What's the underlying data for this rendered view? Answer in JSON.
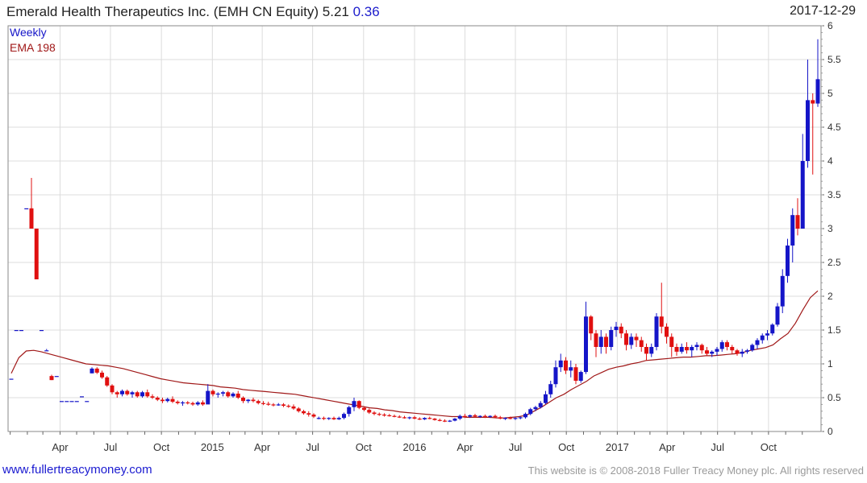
{
  "header": {
    "title": "Emerald Health Therapeutics Inc. (EMH CN Equity) 5.21",
    "change": "0.36",
    "date": "2017-12-29"
  },
  "footer": {
    "link": "www.fullertreacymoney.com",
    "copyright": "This website is © 2008-2018 Fuller Treacy Money plc. All rights reserved"
  },
  "colors": {
    "up": "#1515c8",
    "down": "#e01010",
    "ema": "#a01818",
    "grid": "#dcdcdc",
    "frame": "#8a8a8a"
  },
  "chart_data": {
    "type": "candlestick",
    "frequency": "weekly",
    "legend": [
      {
        "label": "Weekly",
        "color": "#1515c8"
      },
      {
        "label": "EMA 198",
        "color": "#a01818"
      }
    ],
    "legend_position": "top-left",
    "y_axis_side": "right",
    "ylim": [
      0,
      6
    ],
    "y_ticks": [
      "0",
      "0.5",
      "1",
      "1.5",
      "2",
      "2.5",
      "3",
      "3.5",
      "4",
      "4.5",
      "5",
      "5.5",
      "6"
    ],
    "x_ticks": [
      "Apr",
      "Jul",
      "Oct",
      "2015",
      "Apr",
      "Jul",
      "Oct",
      "2016",
      "Apr",
      "Jul",
      "Oct",
      "2017",
      "Apr",
      "Jul",
      "Oct"
    ],
    "grid": true,
    "weeks": [
      "2014-01-03",
      "2017-12-29"
    ],
    "candles": [
      [
        0.78,
        0.78,
        0.78,
        0.78
      ],
      [
        1.5,
        1.5,
        1.5,
        1.5
      ],
      [
        1.5,
        1.5,
        1.5,
        1.5
      ],
      [
        3.3,
        3.3,
        3.3,
        3.3
      ],
      [
        3.3,
        3.75,
        3.0,
        3.0
      ],
      [
        3.0,
        3.0,
        2.25,
        2.25
      ],
      [
        1.5,
        1.5,
        1.5,
        1.5
      ],
      [
        1.2,
        1.22,
        1.2,
        1.2
      ],
      [
        0.82,
        0.84,
        0.76,
        0.76
      ],
      [
        0.82,
        0.82,
        0.82,
        0.82
      ],
      [
        0.45,
        0.45,
        0.45,
        0.45
      ],
      [
        0.45,
        0.45,
        0.45,
        0.45
      ],
      [
        0.45,
        0.45,
        0.45,
        0.45
      ],
      [
        0.45,
        0.45,
        0.45,
        0.45
      ],
      [
        0.52,
        0.52,
        0.52,
        0.52
      ],
      [
        0.45,
        0.45,
        0.45,
        0.45
      ],
      [
        0.86,
        0.95,
        0.86,
        0.93
      ],
      [
        0.93,
        0.95,
        0.85,
        0.87
      ],
      [
        0.87,
        0.9,
        0.78,
        0.8
      ],
      [
        0.8,
        0.82,
        0.66,
        0.68
      ],
      [
        0.68,
        0.7,
        0.55,
        0.58
      ],
      [
        0.58,
        0.6,
        0.5,
        0.55
      ],
      [
        0.55,
        0.62,
        0.52,
        0.6
      ],
      [
        0.6,
        0.62,
        0.53,
        0.55
      ],
      [
        0.55,
        0.6,
        0.5,
        0.58
      ],
      [
        0.58,
        0.6,
        0.5,
        0.52
      ],
      [
        0.52,
        0.6,
        0.5,
        0.58
      ],
      [
        0.58,
        0.62,
        0.5,
        0.52
      ],
      [
        0.52,
        0.55,
        0.48,
        0.5
      ],
      [
        0.5,
        0.52,
        0.45,
        0.47
      ],
      [
        0.47,
        0.5,
        0.42,
        0.45
      ],
      [
        0.45,
        0.5,
        0.43,
        0.48
      ],
      [
        0.48,
        0.52,
        0.42,
        0.44
      ],
      [
        0.44,
        0.46,
        0.4,
        0.42
      ],
      [
        0.42,
        0.45,
        0.38,
        0.43
      ],
      [
        0.43,
        0.45,
        0.4,
        0.42
      ],
      [
        0.42,
        0.44,
        0.38,
        0.4
      ],
      [
        0.4,
        0.45,
        0.38,
        0.43
      ],
      [
        0.43,
        0.46,
        0.38,
        0.4
      ],
      [
        0.4,
        0.7,
        0.42,
        0.6
      ],
      [
        0.6,
        0.62,
        0.52,
        0.55
      ],
      [
        0.55,
        0.58,
        0.5,
        0.56
      ],
      [
        0.56,
        0.6,
        0.52,
        0.58
      ],
      [
        0.58,
        0.6,
        0.5,
        0.52
      ],
      [
        0.52,
        0.58,
        0.5,
        0.56
      ],
      [
        0.56,
        0.6,
        0.48,
        0.5
      ],
      [
        0.5,
        0.52,
        0.42,
        0.45
      ],
      [
        0.45,
        0.48,
        0.42,
        0.47
      ],
      [
        0.47,
        0.5,
        0.43,
        0.45
      ],
      [
        0.45,
        0.47,
        0.4,
        0.42
      ],
      [
        0.42,
        0.45,
        0.39,
        0.41
      ],
      [
        0.41,
        0.44,
        0.38,
        0.4
      ],
      [
        0.4,
        0.42,
        0.37,
        0.39
      ],
      [
        0.39,
        0.42,
        0.38,
        0.4
      ],
      [
        0.4,
        0.42,
        0.36,
        0.38
      ],
      [
        0.38,
        0.4,
        0.35,
        0.37
      ],
      [
        0.37,
        0.4,
        0.32,
        0.34
      ],
      [
        0.34,
        0.36,
        0.28,
        0.3
      ],
      [
        0.3,
        0.32,
        0.25,
        0.27
      ],
      [
        0.27,
        0.3,
        0.22,
        0.25
      ],
      [
        0.25,
        0.27,
        0.2,
        0.22
      ],
      [
        0.2,
        0.22,
        0.18,
        0.2
      ],
      [
        0.2,
        0.22,
        0.17,
        0.19
      ],
      [
        0.19,
        0.21,
        0.17,
        0.2
      ],
      [
        0.2,
        0.22,
        0.17,
        0.18
      ],
      [
        0.18,
        0.22,
        0.17,
        0.2
      ],
      [
        0.2,
        0.28,
        0.18,
        0.26
      ],
      [
        0.26,
        0.38,
        0.22,
        0.36
      ],
      [
        0.36,
        0.5,
        0.3,
        0.45
      ],
      [
        0.45,
        0.46,
        0.33,
        0.35
      ],
      [
        0.35,
        0.37,
        0.3,
        0.32
      ],
      [
        0.32,
        0.34,
        0.26,
        0.28
      ],
      [
        0.28,
        0.3,
        0.24,
        0.26
      ],
      [
        0.26,
        0.28,
        0.23,
        0.25
      ],
      [
        0.25,
        0.27,
        0.22,
        0.24
      ],
      [
        0.24,
        0.26,
        0.22,
        0.23
      ],
      [
        0.23,
        0.25,
        0.21,
        0.22
      ],
      [
        0.22,
        0.24,
        0.2,
        0.21
      ],
      [
        0.21,
        0.23,
        0.19,
        0.2
      ],
      [
        0.2,
        0.22,
        0.18,
        0.21
      ],
      [
        0.21,
        0.23,
        0.18,
        0.19
      ],
      [
        0.19,
        0.21,
        0.17,
        0.18
      ],
      [
        0.18,
        0.21,
        0.17,
        0.2
      ],
      [
        0.2,
        0.22,
        0.18,
        0.19
      ],
      [
        0.19,
        0.2,
        0.16,
        0.17
      ],
      [
        0.17,
        0.19,
        0.15,
        0.16
      ],
      [
        0.16,
        0.18,
        0.14,
        0.15
      ],
      [
        0.15,
        0.17,
        0.14,
        0.16
      ],
      [
        0.16,
        0.2,
        0.15,
        0.19
      ],
      [
        0.19,
        0.25,
        0.17,
        0.23
      ],
      [
        0.23,
        0.26,
        0.2,
        0.22
      ],
      [
        0.22,
        0.25,
        0.2,
        0.24
      ],
      [
        0.24,
        0.26,
        0.21,
        0.22
      ],
      [
        0.22,
        0.24,
        0.2,
        0.23
      ],
      [
        0.23,
        0.25,
        0.2,
        0.22
      ],
      [
        0.22,
        0.24,
        0.2,
        0.23
      ],
      [
        0.23,
        0.25,
        0.2,
        0.21
      ],
      [
        0.21,
        0.23,
        0.18,
        0.19
      ],
      [
        0.19,
        0.21,
        0.17,
        0.2
      ],
      [
        0.2,
        0.22,
        0.18,
        0.19
      ],
      [
        0.19,
        0.21,
        0.17,
        0.2
      ],
      [
        0.2,
        0.22,
        0.18,
        0.21
      ],
      [
        0.21,
        0.28,
        0.19,
        0.26
      ],
      [
        0.26,
        0.35,
        0.24,
        0.33
      ],
      [
        0.33,
        0.38,
        0.3,
        0.36
      ],
      [
        0.36,
        0.45,
        0.34,
        0.42
      ],
      [
        0.42,
        0.6,
        0.4,
        0.55
      ],
      [
        0.55,
        0.75,
        0.5,
        0.7
      ],
      [
        0.7,
        1.05,
        0.65,
        0.95
      ],
      [
        0.95,
        1.15,
        0.88,
        1.05
      ],
      [
        1.05,
        1.1,
        0.85,
        0.9
      ],
      [
        0.9,
        1.05,
        0.8,
        0.95
      ],
      [
        0.95,
        1.0,
        0.7,
        0.75
      ],
      [
        0.75,
        0.9,
        0.72,
        0.88
      ],
      [
        0.88,
        1.92,
        0.85,
        1.7
      ],
      [
        1.7,
        1.72,
        1.35,
        1.45
      ],
      [
        1.45,
        1.5,
        1.1,
        1.25
      ],
      [
        1.25,
        1.5,
        1.15,
        1.4
      ],
      [
        1.4,
        1.45,
        1.15,
        1.25
      ],
      [
        1.25,
        1.55,
        1.2,
        1.5
      ],
      [
        1.5,
        1.62,
        1.4,
        1.55
      ],
      [
        1.55,
        1.6,
        1.38,
        1.45
      ],
      [
        1.45,
        1.5,
        1.2,
        1.28
      ],
      [
        1.28,
        1.45,
        1.22,
        1.4
      ],
      [
        1.4,
        1.45,
        1.25,
        1.35
      ],
      [
        1.35,
        1.4,
        1.18,
        1.25
      ],
      [
        1.25,
        1.3,
        1.05,
        1.15
      ],
      [
        1.15,
        1.3,
        1.1,
        1.25
      ],
      [
        1.25,
        1.75,
        1.2,
        1.7
      ],
      [
        1.7,
        2.2,
        1.45,
        1.55
      ],
      [
        1.55,
        1.6,
        1.3,
        1.4
      ],
      [
        1.4,
        1.45,
        1.1,
        1.25
      ],
      [
        1.25,
        1.3,
        1.12,
        1.18
      ],
      [
        1.18,
        1.3,
        1.15,
        1.25
      ],
      [
        1.25,
        1.32,
        1.15,
        1.2
      ],
      [
        1.2,
        1.28,
        1.1,
        1.25
      ],
      [
        1.25,
        1.32,
        1.2,
        1.28
      ],
      [
        1.28,
        1.3,
        1.15,
        1.2
      ],
      [
        1.2,
        1.25,
        1.12,
        1.15
      ],
      [
        1.15,
        1.2,
        1.1,
        1.18
      ],
      [
        1.18,
        1.25,
        1.12,
        1.22
      ],
      [
        1.22,
        1.35,
        1.18,
        1.32
      ],
      [
        1.32,
        1.35,
        1.2,
        1.25
      ],
      [
        1.25,
        1.28,
        1.15,
        1.2
      ],
      [
        1.2,
        1.22,
        1.12,
        1.15
      ],
      [
        1.15,
        1.22,
        1.1,
        1.18
      ],
      [
        1.18,
        1.22,
        1.15,
        1.2
      ],
      [
        1.2,
        1.3,
        1.18,
        1.28
      ],
      [
        1.28,
        1.38,
        1.22,
        1.35
      ],
      [
        1.35,
        1.45,
        1.3,
        1.42
      ],
      [
        1.42,
        1.5,
        1.35,
        1.45
      ],
      [
        1.45,
        1.6,
        1.42,
        1.58
      ],
      [
        1.58,
        1.9,
        1.55,
        1.85
      ],
      [
        1.85,
        2.4,
        1.75,
        2.3
      ],
      [
        2.3,
        2.85,
        2.2,
        2.75
      ],
      [
        2.75,
        3.3,
        2.5,
        3.2
      ],
      [
        3.2,
        3.45,
        2.9,
        3.0
      ],
      [
        3.0,
        4.4,
        3.0,
        4.0
      ],
      [
        4.0,
        5.5,
        3.9,
        4.9
      ],
      [
        4.9,
        5.0,
        3.8,
        4.85
      ],
      [
        4.85,
        5.8,
        4.8,
        5.21
      ]
    ],
    "ema_198": [
      0.86,
      1.09,
      1.19,
      1.2,
      1.18,
      1.15,
      1.12,
      1.09,
      1.06,
      1.03,
      1.0,
      0.99,
      0.98,
      0.97,
      0.95,
      0.93,
      0.9,
      0.87,
      0.84,
      0.81,
      0.78,
      0.76,
      0.74,
      0.72,
      0.71,
      0.7,
      0.69,
      0.68,
      0.66,
      0.65,
      0.64,
      0.62,
      0.61,
      0.6,
      0.59,
      0.58,
      0.57,
      0.56,
      0.55,
      0.53,
      0.51,
      0.49,
      0.47,
      0.45,
      0.43,
      0.41,
      0.39,
      0.37,
      0.35,
      0.34,
      0.32,
      0.31,
      0.29,
      0.28,
      0.27,
      0.26,
      0.25,
      0.24,
      0.23,
      0.22,
      0.22,
      0.21,
      0.21,
      0.21,
      0.21,
      0.2,
      0.2,
      0.21,
      0.22,
      0.24,
      0.3,
      0.36,
      0.43,
      0.5,
      0.55,
      0.62,
      0.68,
      0.74,
      0.82,
      0.87,
      0.92,
      0.95,
      0.97,
      1.0,
      1.02,
      1.05,
      1.06,
      1.07,
      1.08,
      1.09,
      1.1,
      1.1,
      1.11,
      1.12,
      1.12,
      1.13,
      1.14,
      1.15,
      1.17,
      1.2,
      1.22,
      1.24,
      1.28,
      1.37,
      1.45,
      1.6,
      1.8,
      1.98,
      2.08
    ]
  }
}
